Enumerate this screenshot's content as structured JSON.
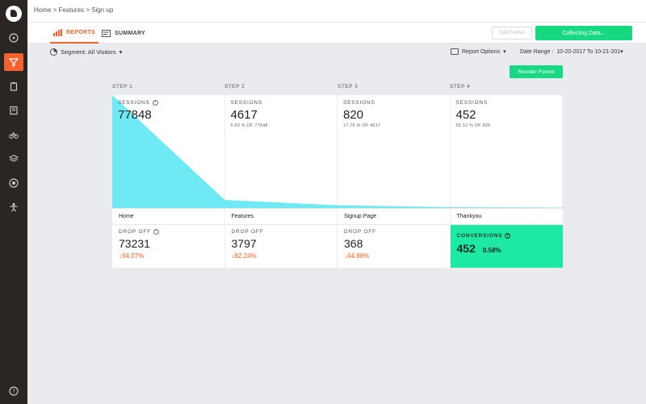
{
  "breadcrumb": "Home > Features > Sign up",
  "tabs": {
    "reports": "REPORTS",
    "summary": "SUMMARY"
  },
  "buttons": {
    "edit_funnel": "Edit Funnel",
    "collecting": "Collecting Data...",
    "reorder": "Reorder Funnel"
  },
  "filters": {
    "segment": "Segment: All Visitors",
    "report_options": "Report Options",
    "date_range_label": "Date Range :",
    "date_range_value": "10-20-2017 To 10-21-201"
  },
  "steps": [
    {
      "label": "STEP 1",
      "sessions_title": "SESSIONS",
      "sessions": "77848",
      "sub": "",
      "page": "Home",
      "drop_title": "DROP OFF",
      "drop": "73231",
      "drop_pct": "↓94.07%"
    },
    {
      "label": "STEP 2",
      "sessions_title": "SESSIONS",
      "sessions": "4617",
      "sub": "5.93 % OF 77848",
      "page": "Features",
      "drop_title": "DROP OFF",
      "drop": "3797",
      "drop_pct": "↓82.24%"
    },
    {
      "label": "STEP 3",
      "sessions_title": "SESSIONS",
      "sessions": "820",
      "sub": "17.76 % OF 4617",
      "page": "Signup Page",
      "drop_title": "DROP OFF",
      "drop": "368",
      "drop_pct": "↓44.88%"
    },
    {
      "label": "STEP 4",
      "sessions_title": "SESSIONS",
      "sessions": "452",
      "sub": "55.12 % OF 820",
      "page": "Thankyou"
    }
  ],
  "conversions": {
    "title": "CONVERSIONS",
    "value": "452",
    "rate": "0.58%"
  },
  "colors": {
    "accent": "#f5612f",
    "green": "#16d982",
    "funnel": "#6fe9f3",
    "conversion": "#1de9a4",
    "sidebar": "#2b2523"
  }
}
